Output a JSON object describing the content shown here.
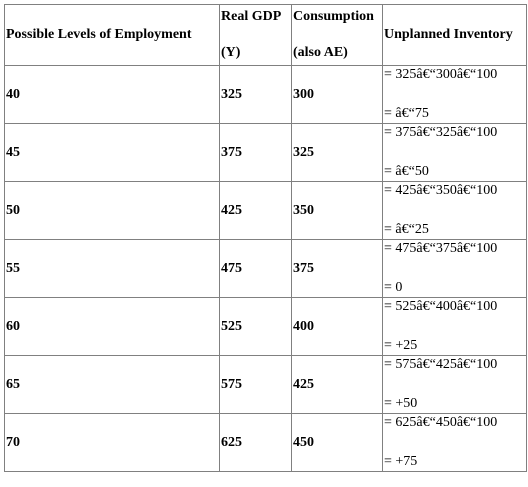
{
  "headers": {
    "employment": "Possible Levels of Employment",
    "gdp_line1": "Real GDP",
    "gdp_line2": "(Y)",
    "consumption_line1": "Consumption",
    "consumption_line2": "(also AE)",
    "inventory": "Unplanned Inventory"
  },
  "rows": [
    {
      "employment": "40",
      "gdp": "325",
      "consumption": "300",
      "formula": "= 325â€“300â€“100",
      "result": "= â€“75"
    },
    {
      "employment": "45",
      "gdp": "375",
      "consumption": "325",
      "formula": "= 375â€“325â€“100",
      "result": "= â€“50"
    },
    {
      "employment": "50",
      "gdp": "425",
      "consumption": "350",
      "formula": "= 425â€“350â€“100",
      "result": "= â€“25"
    },
    {
      "employment": "55",
      "gdp": "475",
      "consumption": "375",
      "formula": "= 475â€“375â€“100",
      "result": "= 0"
    },
    {
      "employment": "60",
      "gdp": "525",
      "consumption": "400",
      "formula": "= 525â€“400â€“100",
      "result": "= +25"
    },
    {
      "employment": "65",
      "gdp": "575",
      "consumption": "425",
      "formula": "= 575â€“425â€“100",
      "result": "= +50"
    },
    {
      "employment": "70",
      "gdp": "625",
      "consumption": "450",
      "formula": "= 625â€“450â€“100",
      "result": "= +75"
    }
  ]
}
